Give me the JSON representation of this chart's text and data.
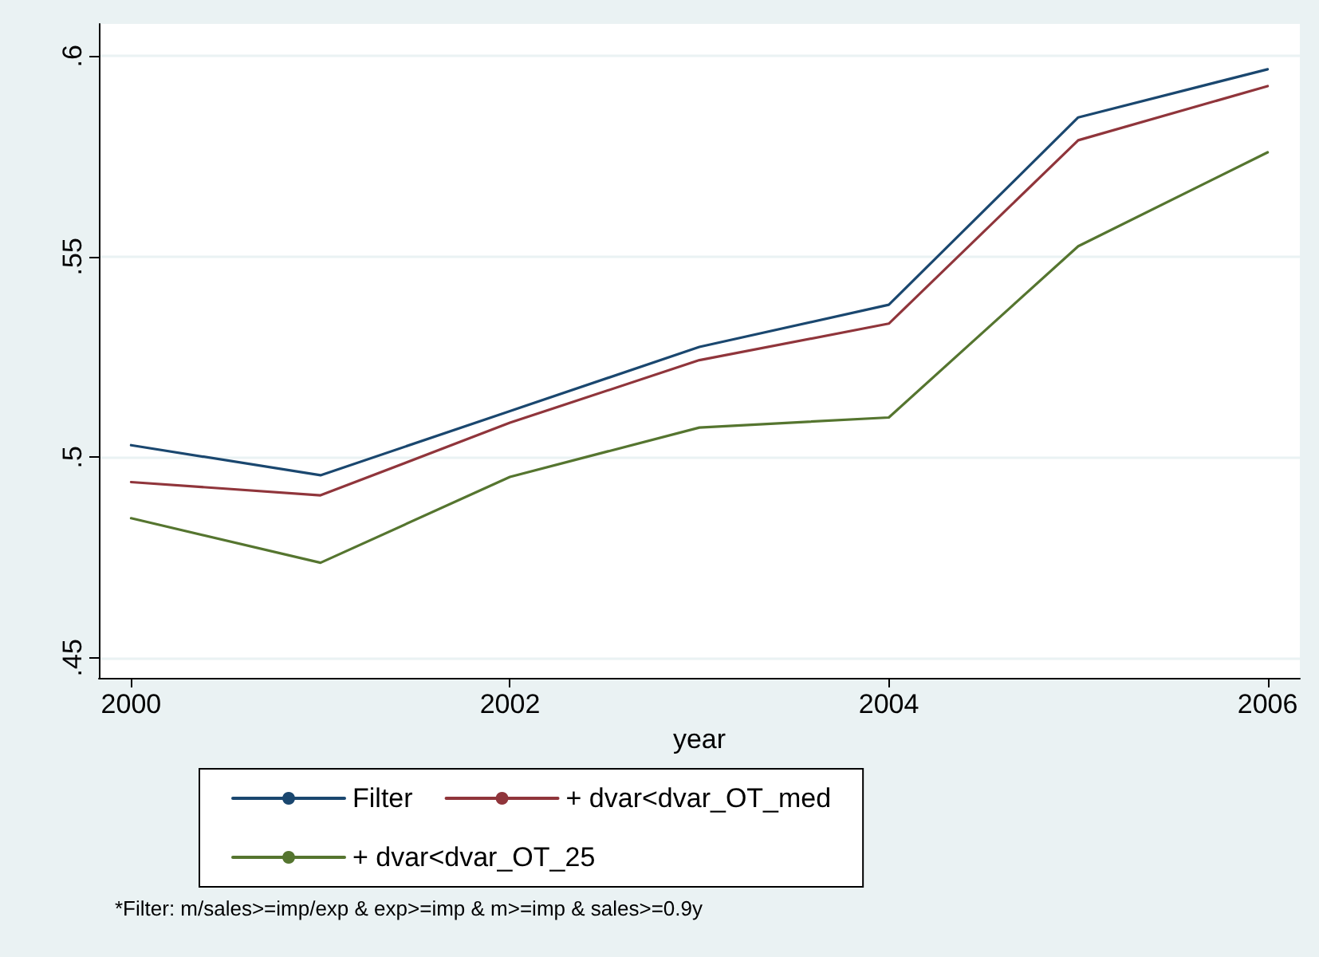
{
  "chart_data": {
    "type": "line",
    "xlabel": "year",
    "x": [
      2000,
      2001,
      2002,
      2003,
      2004,
      2005,
      2006
    ],
    "series": [
      {
        "name": "Filter",
        "color": "#1a476f",
        "values": [
          0.503,
          0.4955,
          0.5115,
          0.5275,
          0.538,
          0.5847,
          0.5967
        ]
      },
      {
        "name": "+ dvar<dvar_OT_med",
        "color": "#90353b",
        "values": [
          0.4938,
          0.4905,
          0.5086,
          0.5242,
          0.5333,
          0.579,
          0.5925
        ]
      },
      {
        "name": "+ dvar<dvar_OT_25",
        "color": "#55752f",
        "values": [
          0.4848,
          0.4737,
          0.4951,
          0.5074,
          0.5099,
          0.5526,
          0.576
        ]
      }
    ],
    "xlim": [
      1999.83,
      2006.17
    ],
    "xticks": [
      2000,
      2002,
      2004,
      2006
    ],
    "ylim": [
      0.445,
      0.608
    ],
    "yticks": [
      {
        "value": 0.45,
        "label": ".45"
      },
      {
        "value": 0.5,
        "label": ".5"
      },
      {
        "value": 0.55,
        "label": ".55"
      },
      {
        "value": 0.6,
        "label": ".6"
      }
    ],
    "grid": "y",
    "legend": "bottom",
    "marker": "none",
    "line_style": "solid",
    "annotations": [
      "*Filter: m/sales>=imp/exp & exp>=imp & m>=imp & sales>=0.9y"
    ]
  }
}
